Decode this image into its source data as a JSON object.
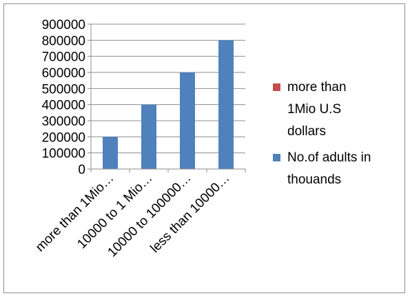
{
  "chart_data": {
    "type": "bar",
    "categories": [
      "more than 1Mio…",
      "10000 to 1 Mio…",
      "10000 to 100000…",
      "less than 10000…"
    ],
    "series": [
      {
        "name": "more than 1Mio U.S dollars",
        "color": "#C0504D",
        "values": [
          0,
          0,
          0,
          0
        ]
      },
      {
        "name": "No.of adults in thouands",
        "color": "#4F81BD",
        "values": [
          200000,
          400000,
          600000,
          800000
        ]
      }
    ],
    "ylim": [
      0,
      900000
    ],
    "yticks": [
      "900000",
      "800000",
      "700000",
      "600000",
      "500000",
      "400000",
      "300000",
      "200000",
      "100000",
      "0"
    ],
    "grid": true,
    "legend_position": "right",
    "legend": [
      {
        "lines": [
          "more than",
          "1Mio U.S",
          "dollars"
        ],
        "color": "#C0504D"
      },
      {
        "lines": [
          "No.of adults in",
          "thouands"
        ],
        "color": "#4F81BD"
      }
    ]
  }
}
